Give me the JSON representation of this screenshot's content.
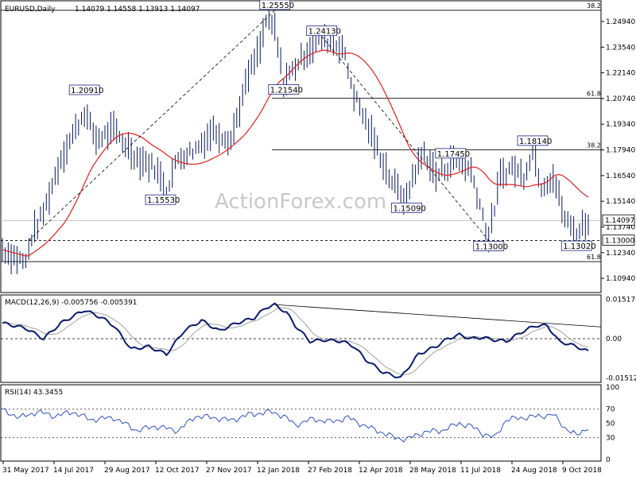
{
  "chart_data": {
    "type": "line",
    "header": {
      "symbol": "EURUSD,Daily",
      "ohlc": "1.14079 1.14558 1.13913 1.14097"
    },
    "watermark": "ActionForex.com",
    "x_tick_labels": [
      "31 May 2017",
      "14 Jul 2017",
      "29 Aug 2017",
      "12 Oct 2017",
      "27 Nov 2017",
      "12 Jan 2018",
      "27 Feb 2018",
      "12 Apr 2018",
      "28 May 2018",
      "11 Jul 2018",
      "24 Aug 2018",
      "9 Oct 2018"
    ],
    "price_panel": {
      "y_ticks": [
        "1.24940",
        "1.23540",
        "1.22140",
        "1.20740",
        "1.19340",
        "1.17940",
        "1.16540",
        "1.15140",
        "1.13740",
        "1.12340",
        "1.10940"
      ],
      "ylim": [
        1.1025,
        1.2585
      ],
      "last_price_label": "1.14097",
      "last_price": 1.14097,
      "support_label": "1.13000",
      "support": 1.13,
      "fib_levels": [
        {
          "label": "38.2",
          "value": 1.2555,
          "x_start": 0
        },
        {
          "label": "61.8",
          "value": 1.2075,
          "x_start": 92
        },
        {
          "label": "38.2",
          "value": 1.1795,
          "x_start": 92
        },
        {
          "label": "61.8",
          "value": 1.1185,
          "x_start": 0
        }
      ],
      "callouts": [
        {
          "label": "1.25550",
          "x": 93,
          "value": 1.2555,
          "side": "above"
        },
        {
          "label": "1.24130",
          "x": 109,
          "value": 1.2413,
          "side": "above"
        },
        {
          "label": "1.21540",
          "x": 96,
          "value": 1.2154,
          "side": "below"
        },
        {
          "label": "1.20910",
          "x": 28,
          "value": 1.2091,
          "side": "above"
        },
        {
          "label": "1.15530",
          "x": 54,
          "value": 1.1553,
          "side": "below"
        },
        {
          "label": "1.15090",
          "x": 138,
          "value": 1.1509,
          "side": "below"
        },
        {
          "label": "1.17450",
          "x": 153,
          "value": 1.1745,
          "side": "above"
        },
        {
          "label": "1.18140",
          "x": 181,
          "value": 1.1814,
          "side": "above"
        },
        {
          "label": "1.13000",
          "x": 166,
          "value": 1.13,
          "side": "below"
        },
        {
          "label": "1.13020",
          "x": 196,
          "value": 1.1302,
          "side": "below"
        }
      ],
      "trendlines": [
        {
          "from": [
            9,
            1.13
          ],
          "to": [
            93,
            1.2555
          ]
        },
        {
          "from": [
            109,
            1.2413
          ],
          "to": [
            166,
            1.13
          ]
        }
      ],
      "anchors_x": [
        0,
        8,
        10,
        14,
        20,
        28,
        32,
        38,
        46,
        52,
        56,
        60,
        66,
        72,
        78,
        84,
        88,
        90,
        93,
        96,
        100,
        105,
        109,
        112,
        116,
        120,
        124,
        128,
        132,
        136,
        138,
        140,
        144,
        148,
        152,
        153,
        156,
        160,
        163,
        166,
        170,
        174,
        178,
        181,
        184,
        188,
        192,
        196,
        198,
        200
      ],
      "anchors_y": [
        1.125,
        1.118,
        1.132,
        1.145,
        1.175,
        1.2,
        1.185,
        1.19,
        1.175,
        1.17,
        1.158,
        1.175,
        1.18,
        1.19,
        1.185,
        1.22,
        1.235,
        1.25,
        1.245,
        1.216,
        1.225,
        1.235,
        1.24,
        1.238,
        1.236,
        1.21,
        1.195,
        1.18,
        1.165,
        1.155,
        1.152,
        1.165,
        1.178,
        1.165,
        1.17,
        1.174,
        1.172,
        1.168,
        1.15,
        1.131,
        1.165,
        1.17,
        1.165,
        1.18,
        1.16,
        1.165,
        1.142,
        1.133,
        1.138,
        1.141
      ],
      "series": [
        {
          "name": "",
          "color": "#0a1a5a"
        },
        {
          "name": "",
          "color": "#e02020"
        }
      ]
    },
    "macd_panel": {
      "label": "MACD(12,26,9) -0.005756 -0.005391",
      "y_ticks": [
        "0.015178",
        "0.00",
        "-0.015126"
      ],
      "ylim": [
        -0.0165,
        0.0165
      ],
      "anchors_x": [
        0,
        8,
        14,
        20,
        28,
        34,
        38,
        44,
        50,
        56,
        62,
        68,
        74,
        80,
        86,
        90,
        93,
        97,
        100,
        105,
        110,
        116,
        120,
        124,
        130,
        136,
        142,
        148,
        152,
        156,
        160,
        164,
        168,
        172,
        178,
        182,
        186,
        190,
        196,
        200
      ],
      "anchors_y": [
        0.006,
        0.004,
        0.0,
        0.006,
        0.011,
        0.008,
        0.005,
        -0.004,
        -0.003,
        -0.006,
        0.003,
        0.007,
        0.003,
        0.006,
        0.008,
        0.012,
        0.013,
        0.01,
        0.005,
        -0.001,
        -0.0005,
        -0.001,
        -0.003,
        -0.008,
        -0.013,
        -0.015,
        -0.006,
        -0.003,
        0.0,
        0.0015,
        0.0,
        0.0005,
        -0.0005,
        -0.001,
        0.003,
        0.005,
        0.005,
        -0.001,
        -0.003,
        -0.005
      ]
    },
    "rsi_panel": {
      "label": "RSI(14) 43.3455",
      "y_ticks": [
        "100",
        "70",
        "50",
        "30",
        "0"
      ],
      "ylim": [
        0,
        100
      ],
      "anchors_x": [
        0,
        6,
        12,
        18,
        24,
        30,
        38,
        46,
        52,
        60,
        66,
        72,
        78,
        84,
        88,
        92,
        96,
        100,
        106,
        112,
        118,
        124,
        128,
        134,
        138,
        144,
        150,
        156,
        160,
        164,
        168,
        172,
        178,
        184,
        188,
        192,
        196,
        200
      ],
      "anchors_y": [
        68,
        58,
        66,
        60,
        66,
        55,
        58,
        40,
        46,
        40,
        60,
        58,
        54,
        62,
        64,
        66,
        60,
        48,
        56,
        52,
        58,
        46,
        40,
        30,
        28,
        38,
        40,
        50,
        46,
        36,
        30,
        55,
        58,
        60,
        62,
        44,
        33,
        45
      ]
    }
  }
}
